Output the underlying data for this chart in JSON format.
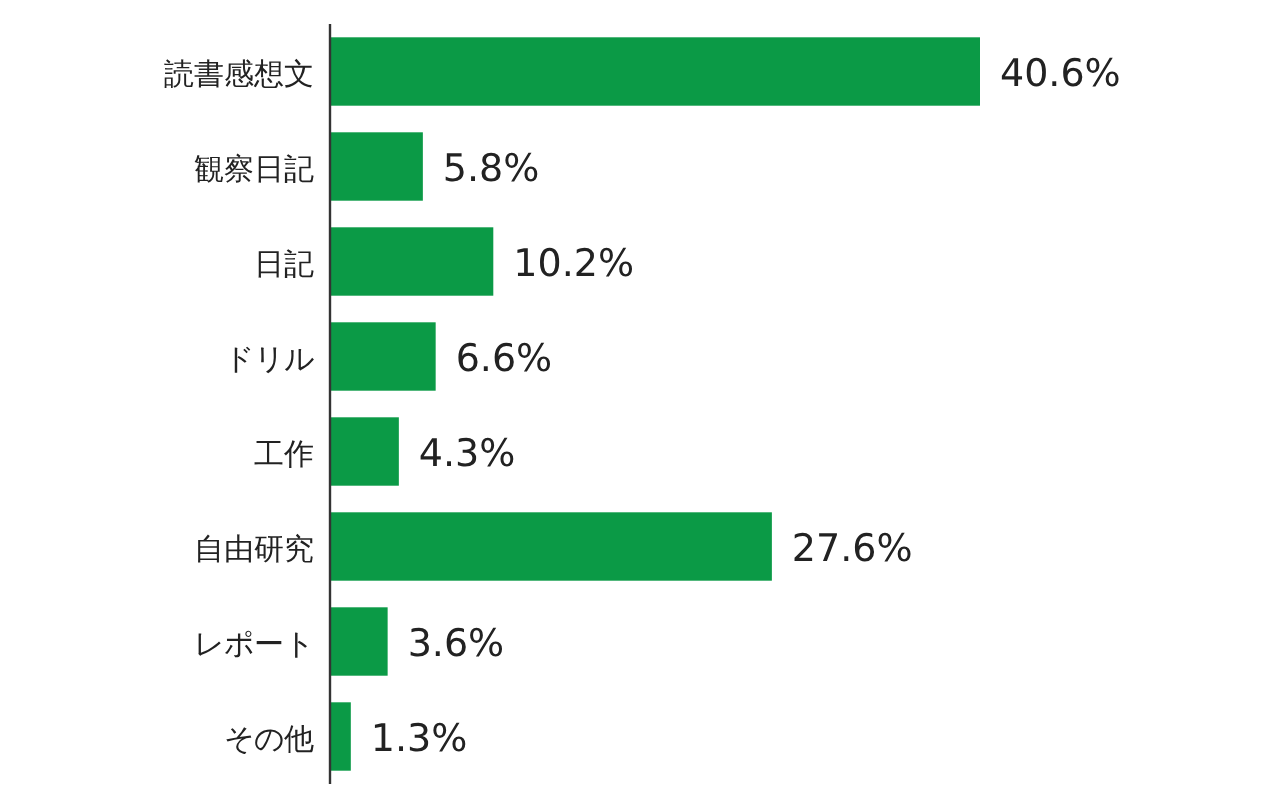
{
  "chart_data": {
    "type": "bar",
    "orientation": "horizontal",
    "categories": [
      "読書感想文",
      "観察日記",
      "日記",
      "ドリル",
      "工作",
      "自由研究",
      "レポート",
      "その他"
    ],
    "values": [
      40.6,
      5.8,
      10.2,
      6.6,
      4.3,
      27.6,
      3.6,
      1.3
    ],
    "value_labels": [
      "40.6%",
      "5.8%",
      "10.2%",
      "6.6%",
      "4.3%",
      "27.6%",
      "3.6%",
      "1.3%"
    ],
    "color": "#0b9a46"
  }
}
